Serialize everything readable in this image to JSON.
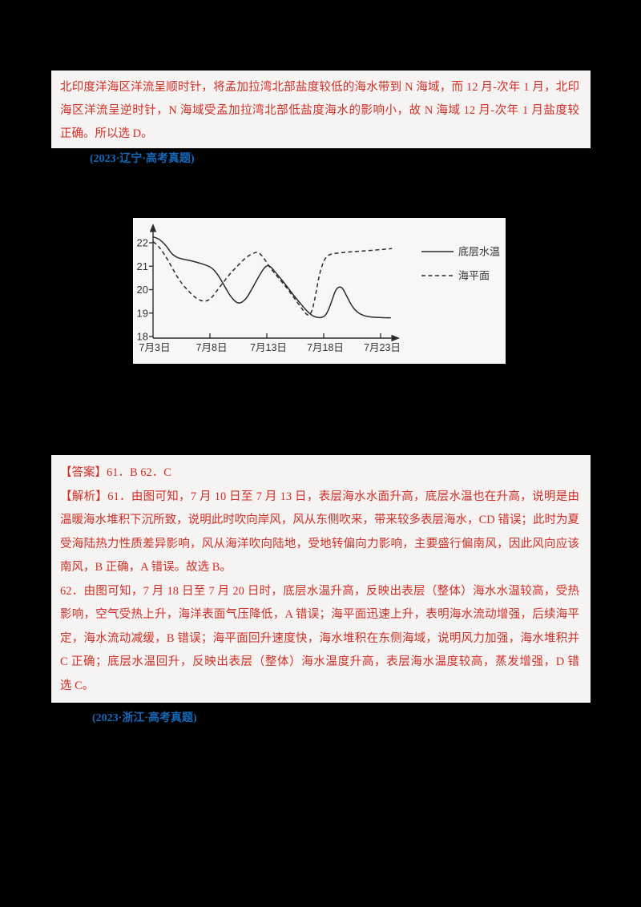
{
  "colors": {
    "background": "#000000",
    "paper": "#f5f4f2",
    "answer_red": "#d12e26",
    "citation_blue": "#1668b8",
    "chart_ink": "#2b2b2b"
  },
  "explanation_top": {
    "lines": [
      "北印度洋海区洋流呈顺时针，将孟加拉湾北部盐度较低的海水带到 N 海域，而 12 月-次年 1 月，北印度洋",
      "海区洋流呈逆时针，N 海域受孟加拉湾北部低盐度海水的影响小，故 N 海域 12 月-次年 1 月盐度较高，D",
      "正确。所以选 D。"
    ]
  },
  "citation1": {
    "text": "(2023·辽宁·高考真题)"
  },
  "chart_data": {
    "type": "line",
    "title": "",
    "xlabel": "",
    "ylabel": "",
    "x_unit": "date in July",
    "xlim_days": [
      3,
      24
    ],
    "ylim": [
      18,
      22.5
    ],
    "grid": false,
    "legend_position": "right",
    "yticks": [
      18,
      19,
      20,
      21,
      22
    ],
    "xticks": [
      {
        "day": 3,
        "label": "7月3日"
      },
      {
        "day": 8,
        "label": "7月8日"
      },
      {
        "day": 13,
        "label": "7月13日"
      },
      {
        "day": 18,
        "label": "7月18日"
      },
      {
        "day": 23,
        "label": "7月23日"
      }
    ],
    "series": [
      {
        "name": "底层水温",
        "style": "solid",
        "points": [
          [
            3,
            22.25
          ],
          [
            3.4,
            22.2
          ],
          [
            3.8,
            22.05
          ],
          [
            4.2,
            21.85
          ],
          [
            4.6,
            21.55
          ],
          [
            5,
            21.4
          ],
          [
            5.4,
            21.32
          ],
          [
            6,
            21.27
          ],
          [
            6.6,
            21.2
          ],
          [
            7.2,
            21.12
          ],
          [
            7.8,
            21.02
          ],
          [
            8.2,
            20.92
          ],
          [
            8.6,
            20.7
          ],
          [
            9,
            20.4
          ],
          [
            9.4,
            20.05
          ],
          [
            9.8,
            19.72
          ],
          [
            10.2,
            19.5
          ],
          [
            10.5,
            19.42
          ],
          [
            10.8,
            19.45
          ],
          [
            11.2,
            19.62
          ],
          [
            11.6,
            19.95
          ],
          [
            12,
            20.3
          ],
          [
            12.4,
            20.65
          ],
          [
            12.8,
            20.95
          ],
          [
            13.1,
            21.05
          ],
          [
            13.4,
            20.95
          ],
          [
            14,
            20.6
          ],
          [
            14.6,
            20.25
          ],
          [
            15.2,
            19.85
          ],
          [
            15.8,
            19.5
          ],
          [
            16.4,
            19.15
          ],
          [
            16.9,
            18.92
          ],
          [
            17.3,
            18.82
          ],
          [
            17.8,
            18.8
          ],
          [
            18.2,
            18.9
          ],
          [
            18.6,
            19.35
          ],
          [
            19,
            19.95
          ],
          [
            19.3,
            20.12
          ],
          [
            19.6,
            20.1
          ],
          [
            19.9,
            19.85
          ],
          [
            20.3,
            19.45
          ],
          [
            20.7,
            19.15
          ],
          [
            21.2,
            18.95
          ],
          [
            21.8,
            18.85
          ],
          [
            22.5,
            18.82
          ],
          [
            23.3,
            18.8
          ],
          [
            23.9,
            18.8
          ]
        ]
      },
      {
        "name": "海平面",
        "style": "dashed",
        "points": [
          [
            3,
            22.05
          ],
          [
            3.4,
            21.9
          ],
          [
            3.8,
            21.65
          ],
          [
            4.2,
            21.35
          ],
          [
            4.6,
            21.0
          ],
          [
            5,
            20.65
          ],
          [
            5.4,
            20.35
          ],
          [
            5.8,
            20.1
          ],
          [
            6.2,
            19.9
          ],
          [
            6.6,
            19.7
          ],
          [
            7,
            19.58
          ],
          [
            7.4,
            19.5
          ],
          [
            7.8,
            19.52
          ],
          [
            8.2,
            19.68
          ],
          [
            8.6,
            19.95
          ],
          [
            9,
            20.2
          ],
          [
            9.4,
            20.45
          ],
          [
            9.8,
            20.7
          ],
          [
            10.2,
            20.9
          ],
          [
            10.6,
            21.1
          ],
          [
            11,
            21.3
          ],
          [
            11.4,
            21.45
          ],
          [
            11.8,
            21.55
          ],
          [
            12.1,
            21.6
          ],
          [
            12.4,
            21.55
          ],
          [
            12.8,
            21.3
          ],
          [
            13.2,
            21.0
          ],
          [
            13.6,
            20.75
          ],
          [
            14.2,
            20.4
          ],
          [
            14.8,
            20.05
          ],
          [
            15.4,
            19.65
          ],
          [
            16,
            19.25
          ],
          [
            16.4,
            18.98
          ],
          [
            16.7,
            18.88
          ],
          [
            17,
            19.1
          ],
          [
            17.3,
            19.8
          ],
          [
            17.6,
            20.6
          ],
          [
            17.9,
            21.1
          ],
          [
            18.2,
            21.4
          ],
          [
            18.6,
            21.52
          ],
          [
            19.2,
            21.56
          ],
          [
            20,
            21.6
          ],
          [
            21,
            21.63
          ],
          [
            22,
            21.67
          ],
          [
            23,
            21.71
          ],
          [
            24,
            21.75
          ]
        ]
      }
    ]
  },
  "answers": {
    "lines": [
      "【答案】61．B      62．C",
      "【解析】61．由图可知，7 月 10 日至 7 月 13 日，表层海水水面升高，底层水温也在升高，说明是由于表层",
      "温暖海水堆积下沉所致，说明此时吹向岸风，风从东侧吹来，带来较多表层海水，CD 错误；此时为夏季，",
      "受海陆热力性质差异影响，风从海洋吹向陆地，受地转偏向力影响，主要盛行偏南风，因此风向应该为东",
      "南风，B 正确，A 错误。故选 B。",
      "62．由图可知，7 月 18 日至 7 月 20 日时，底层水温升高，反映出表层（整体）海水水温较高，受热力因素",
      "影响，空气受热上升，海洋表面气压降低，A 错误；海平面迅速上升，表明海水流动增强，后续海平面稳",
      "定，海水流动减缓，B 错误；海平面回升速度快，海水堆积在东侧海域，说明风力加强，海水堆积并升高，",
      "C 正确；底层水温回升，反映出表层（整体）海水温度升高，表层海水温度较高，蒸发增强，D 错误。故",
      "选 C。"
    ]
  },
  "citation2": {
    "text": "(2023·浙江·高考真题)"
  }
}
